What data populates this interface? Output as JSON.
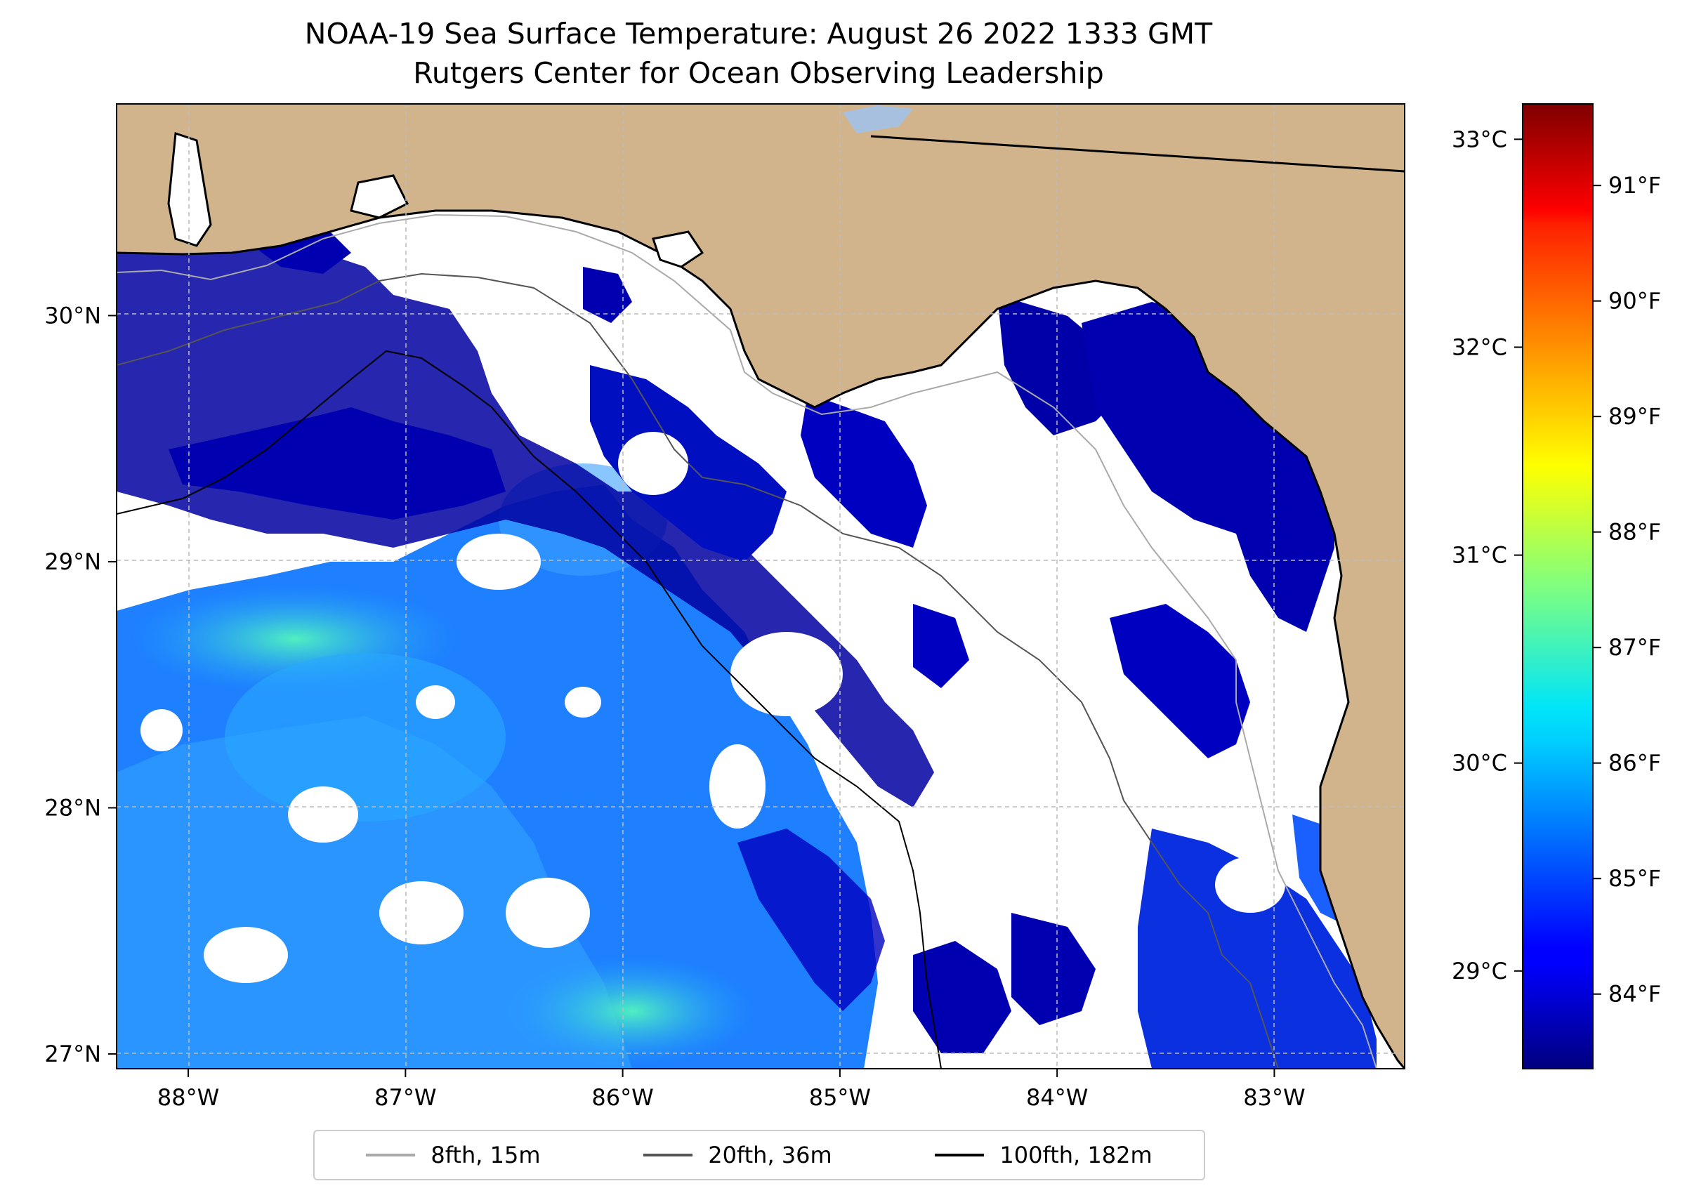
{
  "title": {
    "line1": "NOAA-19 Sea Surface Temperature: August 26 2022 1333 GMT",
    "line2": "Rutgers Center for Ocean Observing Leadership"
  },
  "map": {
    "lon_ticks": [
      "88°W",
      "87°W",
      "86°W",
      "85°W",
      "84°W",
      "83°W"
    ],
    "lon_values": [
      -88,
      -87,
      -86,
      -85,
      -84,
      -83
    ],
    "lat_ticks": [
      "27°N",
      "28°N",
      "29°N",
      "30°N"
    ],
    "lat_values": [
      27,
      28,
      29,
      30
    ],
    "extent": {
      "lon": [
        -88.33,
        -82.4
      ],
      "lat": [
        26.94,
        30.86
      ]
    },
    "land_color": "#d2b48c",
    "cloud_color": "#ffffff",
    "gridlines": true
  },
  "colorbar": {
    "colormap": "jet",
    "celsius_labels": [
      "33°C",
      "32°C",
      "31°C",
      "30°C",
      "29°C"
    ],
    "celsius_values": [
      33,
      32,
      31,
      30,
      29
    ],
    "fahrenheit_labels": [
      "91°F",
      "90°F",
      "89°F",
      "88°F",
      "87°F",
      "86°F",
      "85°F",
      "84°F"
    ],
    "fahrenheit_values": [
      91,
      90,
      89,
      88,
      87,
      86,
      85,
      84
    ],
    "range_c": [
      28.53,
      33.17
    ]
  },
  "legend": {
    "items": [
      {
        "label": "8fth, 15m",
        "color": "#aaaaaa"
      },
      {
        "label": "20fth, 36m",
        "color": "#555555"
      },
      {
        "label": "100fth, 182m",
        "color": "#000000"
      }
    ]
  }
}
